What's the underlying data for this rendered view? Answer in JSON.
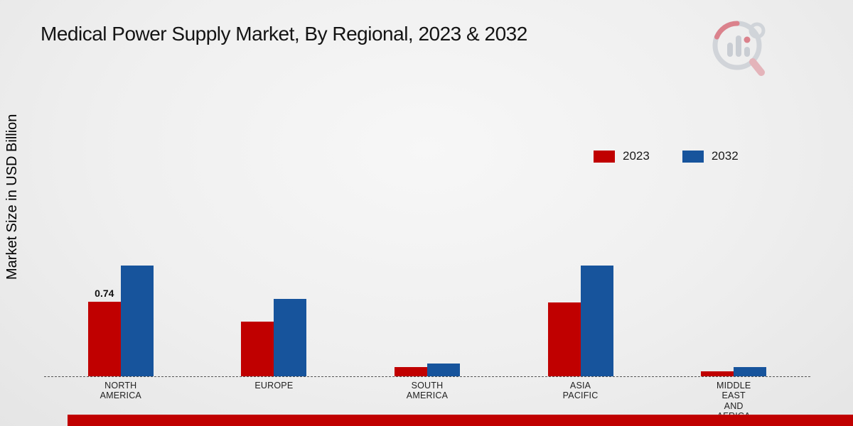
{
  "header": {
    "title": "Medical Power Supply Market, By Regional, 2023 & 2032"
  },
  "chart_data": {
    "type": "bar",
    "title": "Medical Power Supply Market, By Regional, 2023 & 2032",
    "xlabel": "",
    "ylabel": "Market Size in USD Billion",
    "categories": [
      "NORTH AMERICA",
      "EUROPE",
      "SOUTH AMERICA",
      "ASIA PACIFIC",
      "MIDDLE EAST AND AFRICA"
    ],
    "series": [
      {
        "name": "2023",
        "color": "#c00000",
        "values": [
          0.74,
          0.54,
          0.09,
          0.73,
          0.05
        ]
      },
      {
        "name": "2032",
        "color": "#17549c",
        "values": [
          1.1,
          0.77,
          0.13,
          1.1,
          0.09
        ]
      }
    ],
    "ylim": [
      0,
      1.4
    ],
    "grid": false,
    "legend_position": "upper right",
    "baseline_style": "dashed",
    "data_labels": [
      {
        "category": "NORTH AMERICA",
        "series": "2023",
        "text": "0.74"
      }
    ]
  },
  "branding": {
    "logo_name": "market-research-magnifier-logo",
    "footer_color": "#c00000"
  }
}
